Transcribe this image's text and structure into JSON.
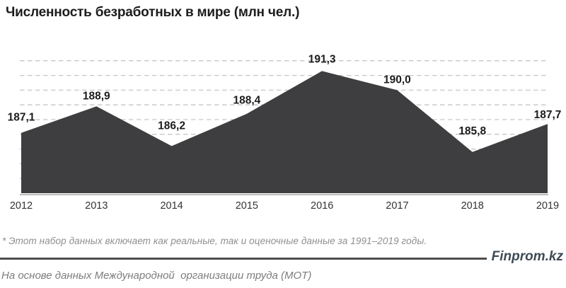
{
  "title": "Численность безработных в мире (млн чел.)",
  "chart_data": {
    "type": "area",
    "title": "Численность безработных в мире (млн чел.)",
    "categories": [
      "2012",
      "2013",
      "2014",
      "2015",
      "2016",
      "2017",
      "2018",
      "2019"
    ],
    "values": [
      187.1,
      188.9,
      186.2,
      188.4,
      191.3,
      190.0,
      185.8,
      187.7
    ],
    "value_labels": [
      "187,1",
      "188,9",
      "186,2",
      "188,4",
      "191,3",
      "190,0",
      "185,8",
      "187,7"
    ],
    "xlabel": "",
    "ylabel": "",
    "ylim": [
      183,
      192.5
    ],
    "grid": "horizontal-dashed",
    "legend": "none",
    "colors": {
      "area_fill": "#3e3e40",
      "gridline": "#c6c6c6",
      "axis_line": "#a6a6a6",
      "value_label": "#1c1c1c",
      "year_label": "#333333"
    }
  },
  "footnote": "* Этот набор данных включает как реальные, так и оценочные данные за 1991–2019 годы.",
  "source": "На основе данных Международной  организации труда (МОТ)",
  "brand": "Finprom.kz"
}
